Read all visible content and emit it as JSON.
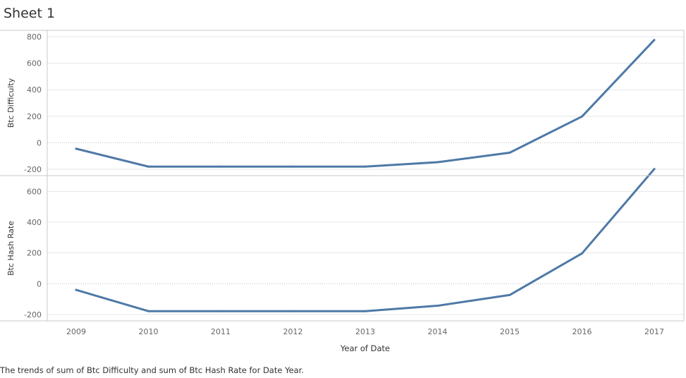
{
  "sheet": {
    "title": "Sheet 1",
    "caption": "The trends of sum of Btc Difficulty and sum of Btc Hash Rate for Date Year."
  },
  "colors": {
    "line": "#4e79a7",
    "grid": "#e6e6e6",
    "zero": "#bdbdbd",
    "border": "#c8c8c8",
    "tick_text": "#666666",
    "axis_title": "#333333"
  },
  "chart_data": {
    "type": "line",
    "xlabel": "Year of Date",
    "categories": [
      "2009",
      "2010",
      "2011",
      "2012",
      "2013",
      "2014",
      "2015",
      "2016",
      "2017"
    ],
    "panes": [
      {
        "ylabel": "Btc Difficulty",
        "ylim": [
          -200,
          800
        ],
        "yticks": [
          -200,
          0,
          200,
          400,
          600,
          800
        ],
        "values": [
          -45,
          -180,
          -180,
          -180,
          -180,
          -147,
          -75,
          198,
          775
        ]
      },
      {
        "ylabel": "Btc Hash Rate",
        "ylim": [
          -200,
          700
        ],
        "yticks": [
          -200,
          0,
          200,
          400,
          600
        ],
        "values": [
          -40,
          -178,
          -178,
          -178,
          -178,
          -143,
          -73,
          197,
          745
        ]
      }
    ],
    "grid": true,
    "legend": "none"
  }
}
